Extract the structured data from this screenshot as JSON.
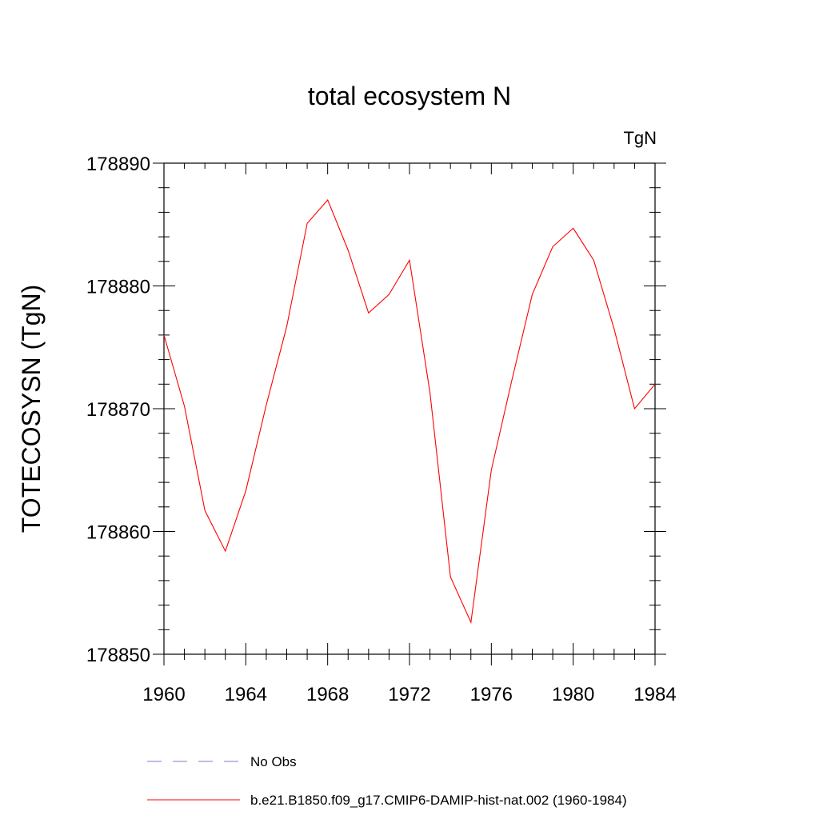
{
  "chart_data": {
    "type": "line",
    "title": "total ecosystem N",
    "units_label": "TgN",
    "ylabel": "TOTECOSYSN  (TgN)",
    "xlabel": "",
    "xlim": [
      1960,
      1984
    ],
    "ylim": [
      178850,
      178890
    ],
    "xticks": [
      "1960",
      "1964",
      "1968",
      "1972",
      "1976",
      "1980",
      "1984"
    ],
    "yticks": [
      "178850",
      "178860",
      "178870",
      "178880",
      "178890"
    ],
    "grid": false,
    "legend_position": "bottom",
    "series": [
      {
        "name": "No Obs",
        "color": "#7b7bd6",
        "style": "dashed",
        "x": [],
        "values": []
      },
      {
        "name": "b.e21.B1850.f09_g17.CMIP6-DAMIP-hist-nat.002 (1960-1984)",
        "color": "#ff0000",
        "style": "solid",
        "x": [
          1960,
          1961,
          1962,
          1963,
          1964,
          1965,
          1966,
          1967,
          1968,
          1969,
          1970,
          1971,
          1972,
          1973,
          1974,
          1975,
          1976,
          1977,
          1978,
          1979,
          1980,
          1981,
          1982,
          1983,
          1984
        ],
        "values": [
          178876.0,
          178870.2,
          178861.7,
          178858.4,
          178863.3,
          178870.3,
          178876.7,
          178885.1,
          178887.0,
          178882.9,
          178877.8,
          178879.3,
          178882.1,
          178871.3,
          178856.3,
          178852.6,
          178865.0,
          178872.3,
          178879.3,
          178883.2,
          178884.7,
          178882.1,
          178876.5,
          178870.0,
          178872.0
        ]
      }
    ]
  }
}
